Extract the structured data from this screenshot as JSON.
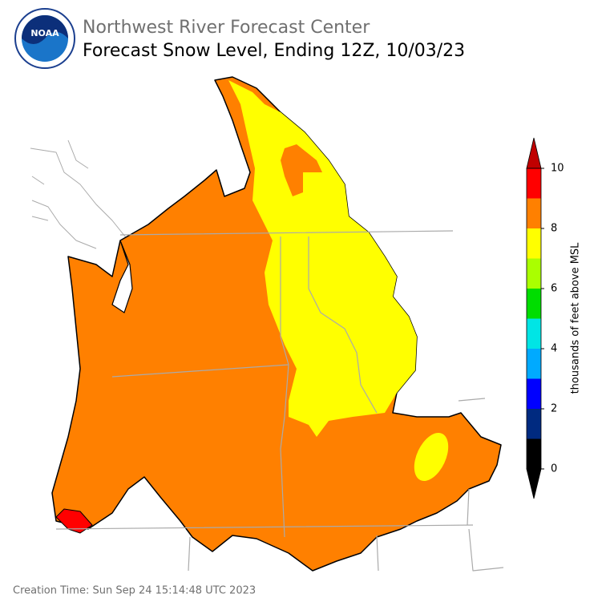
{
  "header": {
    "organization": "Northwest River Forecast Center",
    "title": "Forecast Snow Level, Ending 12Z, 10/03/23"
  },
  "colorbar": {
    "label": "thousands of feet above MSL",
    "lim": [
      0,
      10
    ],
    "ticks": [
      0,
      2,
      4,
      6,
      8,
      10
    ],
    "bounds": [
      0,
      1,
      2,
      3,
      4,
      5,
      6,
      7,
      8,
      9,
      10
    ],
    "colors": [
      "#000000",
      "#002a80",
      "#0000ff",
      "#00aaff",
      "#00e5e5",
      "#00dd00",
      "#aaff00",
      "#ffff00",
      "#ff8000",
      "#ff0000"
    ],
    "under_color": "#000000",
    "over_color": "#c00000"
  },
  "footer": {
    "creation_time": "Creation Time: Sun Sep 24 15:14:48 UTC 2023"
  }
}
